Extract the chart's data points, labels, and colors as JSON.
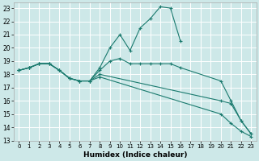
{
  "xlabel": "Humidex (Indice chaleur)",
  "background_color": "#cde8e8",
  "grid_color": "#ffffff",
  "line_color": "#1a7a6e",
  "xlim": [
    -0.5,
    23.5
  ],
  "ylim": [
    13,
    23.4
  ],
  "xticks": [
    0,
    1,
    2,
    3,
    4,
    5,
    6,
    7,
    8,
    9,
    10,
    11,
    12,
    13,
    14,
    15,
    16,
    17,
    18,
    19,
    20,
    21,
    22,
    23
  ],
  "yticks": [
    13,
    14,
    15,
    16,
    17,
    18,
    19,
    20,
    21,
    22,
    23
  ],
  "lines": [
    {
      "x": [
        0,
        1,
        2,
        3,
        4,
        5,
        6,
        7,
        8,
        9,
        10,
        11,
        12,
        13,
        14,
        15,
        16
      ],
      "y": [
        18.3,
        18.5,
        18.8,
        18.8,
        18.3,
        17.7,
        17.5,
        17.5,
        18.5,
        20.0,
        21.0,
        19.8,
        21.5,
        22.2,
        23.1,
        23.0,
        20.5
      ]
    },
    {
      "x": [
        0,
        1,
        2,
        3,
        4,
        5,
        6,
        7,
        8,
        9,
        10,
        11,
        12,
        13,
        14,
        15,
        16,
        20,
        21,
        22,
        23
      ],
      "y": [
        18.3,
        18.5,
        18.8,
        18.8,
        18.3,
        17.7,
        17.5,
        17.5,
        18.3,
        19.0,
        19.2,
        18.8,
        18.8,
        18.8,
        18.8,
        18.8,
        18.5,
        17.5,
        16.0,
        14.5,
        13.5
      ]
    },
    {
      "x": [
        0,
        1,
        2,
        3,
        4,
        5,
        6,
        7,
        8,
        20,
        21,
        22,
        23
      ],
      "y": [
        18.3,
        18.5,
        18.8,
        18.8,
        18.3,
        17.7,
        17.5,
        17.5,
        18.0,
        16.0,
        15.8,
        14.5,
        13.5
      ]
    },
    {
      "x": [
        0,
        1,
        2,
        3,
        4,
        5,
        6,
        7,
        8,
        20,
        21,
        22,
        23
      ],
      "y": [
        18.3,
        18.5,
        18.8,
        18.8,
        18.3,
        17.7,
        17.5,
        17.5,
        17.8,
        15.0,
        14.3,
        13.7,
        13.3
      ]
    }
  ]
}
